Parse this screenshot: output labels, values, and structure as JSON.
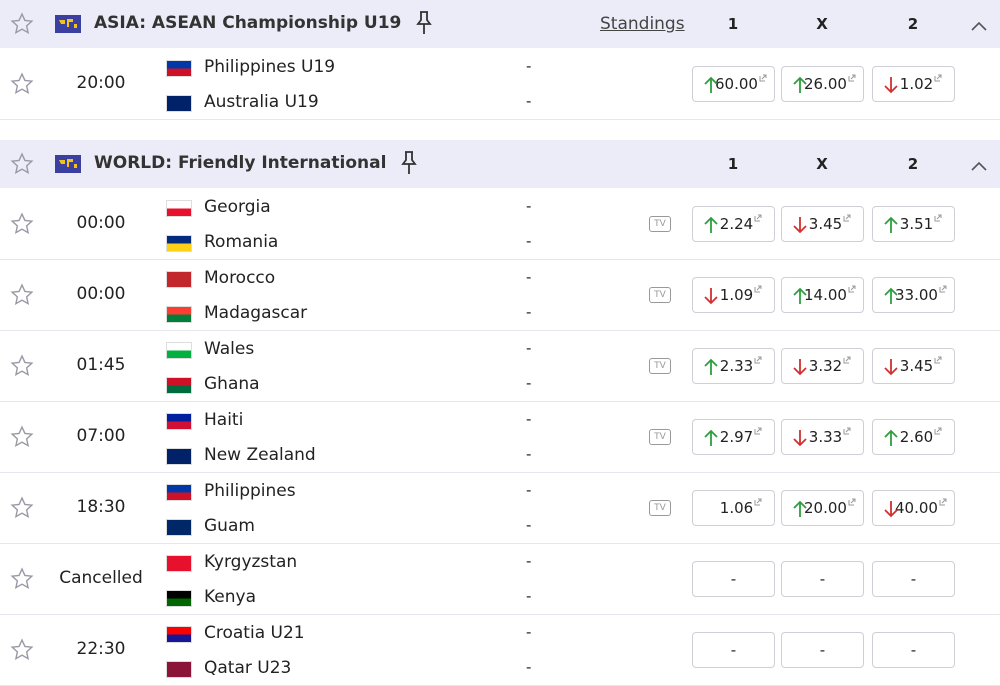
{
  "leagues": [
    {
      "title": "ASIA: ASEAN Championship U19",
      "standings": "Standings",
      "columns": [
        "1",
        "X",
        "2"
      ],
      "matches": [
        {
          "time": "20:00",
          "home": {
            "name": "Philippines U19",
            "score": "-",
            "flag": [
              "#0038a8",
              "#ce1126"
            ]
          },
          "away": {
            "name": "Australia U19",
            "score": "-",
            "flag": [
              "#012169",
              "#012169"
            ]
          },
          "tv": null,
          "odds": [
            {
              "value": "60.00",
              "trend": "up"
            },
            {
              "value": "26.00",
              "trend": "up"
            },
            {
              "value": "1.02",
              "trend": "down"
            }
          ]
        }
      ]
    },
    {
      "title": "WORLD: Friendly International",
      "columns": [
        "1",
        "X",
        "2"
      ],
      "matches": [
        {
          "time": "00:00",
          "home": {
            "name": "Georgia",
            "score": "-",
            "flag": [
              "#ffffff",
              "#e8112d"
            ]
          },
          "away": {
            "name": "Romania",
            "score": "-",
            "flag": [
              "#002b7f",
              "#fcd116"
            ]
          },
          "tv": "TV",
          "odds": [
            {
              "value": "2.24",
              "trend": "up"
            },
            {
              "value": "3.45",
              "trend": "down"
            },
            {
              "value": "3.51",
              "trend": "up"
            }
          ]
        },
        {
          "time": "00:00",
          "home": {
            "name": "Morocco",
            "score": "-",
            "flag": [
              "#c1272d",
              "#c1272d"
            ]
          },
          "away": {
            "name": "Madagascar",
            "score": "-",
            "flag": [
              "#fc3d32",
              "#007e3a"
            ]
          },
          "tv": "TV",
          "odds": [
            {
              "value": "1.09",
              "trend": "down"
            },
            {
              "value": "14.00",
              "trend": "up"
            },
            {
              "value": "33.00",
              "trend": "up"
            }
          ]
        },
        {
          "time": "01:45",
          "home": {
            "name": "Wales",
            "score": "-",
            "flag": [
              "#ffffff",
              "#00b140"
            ]
          },
          "away": {
            "name": "Ghana",
            "score": "-",
            "flag": [
              "#ce1126",
              "#006b3f"
            ]
          },
          "tv": "TV",
          "odds": [
            {
              "value": "2.33",
              "trend": "up"
            },
            {
              "value": "3.32",
              "trend": "down"
            },
            {
              "value": "3.45",
              "trend": "down"
            }
          ]
        },
        {
          "time": "07:00",
          "home": {
            "name": "Haiti",
            "score": "-",
            "flag": [
              "#00209f",
              "#d21034"
            ]
          },
          "away": {
            "name": "New Zealand",
            "score": "-",
            "flag": [
              "#012169",
              "#012169"
            ]
          },
          "tv": "TV",
          "odds": [
            {
              "value": "2.97",
              "trend": "up"
            },
            {
              "value": "3.33",
              "trend": "down"
            },
            {
              "value": "2.60",
              "trend": "up"
            }
          ]
        },
        {
          "time": "18:30",
          "home": {
            "name": "Philippines",
            "score": "-",
            "flag": [
              "#0038a8",
              "#ce1126"
            ]
          },
          "away": {
            "name": "Guam",
            "score": "-",
            "flag": [
              "#002868",
              "#002868"
            ]
          },
          "tv": "TV",
          "odds": [
            {
              "value": "1.06",
              "trend": null
            },
            {
              "value": "20.00",
              "trend": "up"
            },
            {
              "value": "40.00",
              "trend": "down"
            }
          ]
        },
        {
          "time": "Cancelled",
          "home": {
            "name": "Kyrgyzstan",
            "score": "-",
            "flag": [
              "#e8112d",
              "#e8112d"
            ]
          },
          "away": {
            "name": "Kenya",
            "score": "-",
            "flag": [
              "#000000",
              "#006600"
            ]
          },
          "tv": null,
          "odds": [
            {
              "value": "-",
              "trend": null
            },
            {
              "value": "-",
              "trend": null
            },
            {
              "value": "-",
              "trend": null
            }
          ]
        },
        {
          "time": "22:30",
          "home": {
            "name": "Croatia U21",
            "score": "-",
            "flag": [
              "#ff0000",
              "#171796"
            ]
          },
          "away": {
            "name": "Qatar U23",
            "score": "-",
            "flag": [
              "#8a1538",
              "#8a1538"
            ]
          },
          "tv": null,
          "odds": [
            {
              "value": "-",
              "trend": null
            },
            {
              "value": "-",
              "trend": null
            },
            {
              "value": "-",
              "trend": null
            }
          ]
        }
      ]
    }
  ]
}
